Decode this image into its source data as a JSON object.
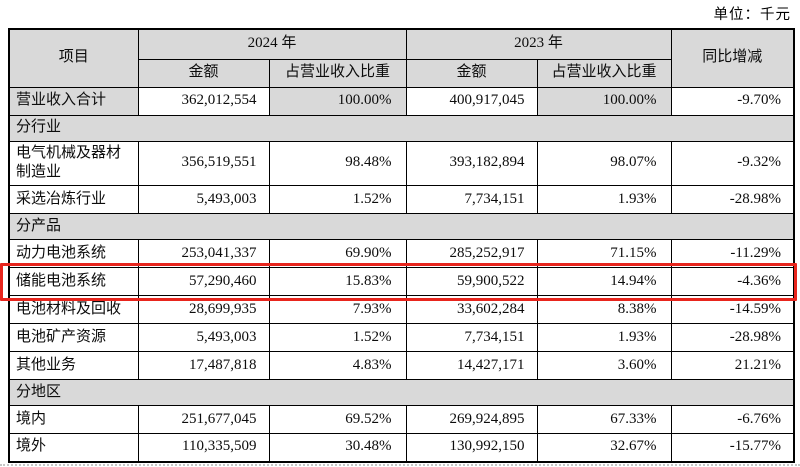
{
  "unit_label": "单位：千元",
  "table": {
    "col_headers": {
      "item": "项目",
      "y2024": "2024 年",
      "y2023": "2023 年",
      "amount": "金额",
      "pct": "占营业收入比重",
      "yoy": "同比增减"
    },
    "rows": [
      {
        "type": "data",
        "shade": true,
        "label": "营业收入合计",
        "a2024": "362,012,554",
        "p2024": "100.00%",
        "a2023": "400,917,045",
        "p2023": "100.00%",
        "yoy": "-9.70%"
      },
      {
        "type": "section",
        "label": "分行业"
      },
      {
        "type": "data",
        "label": "电气机械及器材制造业",
        "a2024": "356,519,551",
        "p2024": "98.48%",
        "a2023": "393,182,894",
        "p2023": "98.07%",
        "yoy": "-9.32%"
      },
      {
        "type": "data",
        "label": "采选冶炼行业",
        "a2024": "5,493,003",
        "p2024": "1.52%",
        "a2023": "7,734,151",
        "p2023": "1.93%",
        "yoy": "-28.98%"
      },
      {
        "type": "section",
        "label": "分产品"
      },
      {
        "type": "data",
        "label": "动力电池系统",
        "a2024": "253,041,337",
        "p2024": "69.90%",
        "a2023": "285,252,917",
        "p2023": "71.15%",
        "yoy": "-11.29%"
      },
      {
        "type": "data",
        "highlight": true,
        "label": "储能电池系统",
        "a2024": "57,290,460",
        "p2024": "15.83%",
        "a2023": "59,900,522",
        "p2023": "14.94%",
        "yoy": "-4.36%"
      },
      {
        "type": "data",
        "label": "电池材料及回收",
        "a2024": "28,699,935",
        "p2024": "7.93%",
        "a2023": "33,602,284",
        "p2023": "8.38%",
        "yoy": "-14.59%"
      },
      {
        "type": "data",
        "label": "电池矿产资源",
        "a2024": "5,493,003",
        "p2024": "1.52%",
        "a2023": "7,734,151",
        "p2023": "1.93%",
        "yoy": "-28.98%"
      },
      {
        "type": "data",
        "label": "其他业务",
        "a2024": "17,487,818",
        "p2024": "4.83%",
        "a2023": "14,427,171",
        "p2023": "3.60%",
        "yoy": "21.21%"
      },
      {
        "type": "section",
        "label": "分地区"
      },
      {
        "type": "data",
        "label": "境内",
        "a2024": "251,677,045",
        "p2024": "69.52%",
        "a2023": "269,924,895",
        "p2023": "67.33%",
        "yoy": "-6.76%"
      },
      {
        "type": "data",
        "label": "境外",
        "a2024": "110,335,509",
        "p2024": "30.48%",
        "a2023": "130,992,150",
        "p2023": "32.67%",
        "yoy": "-15.77%"
      }
    ]
  },
  "colors": {
    "highlight_border": "#e8251d",
    "header_bg": "#d9d9d9",
    "grid_border": "#000000"
  }
}
